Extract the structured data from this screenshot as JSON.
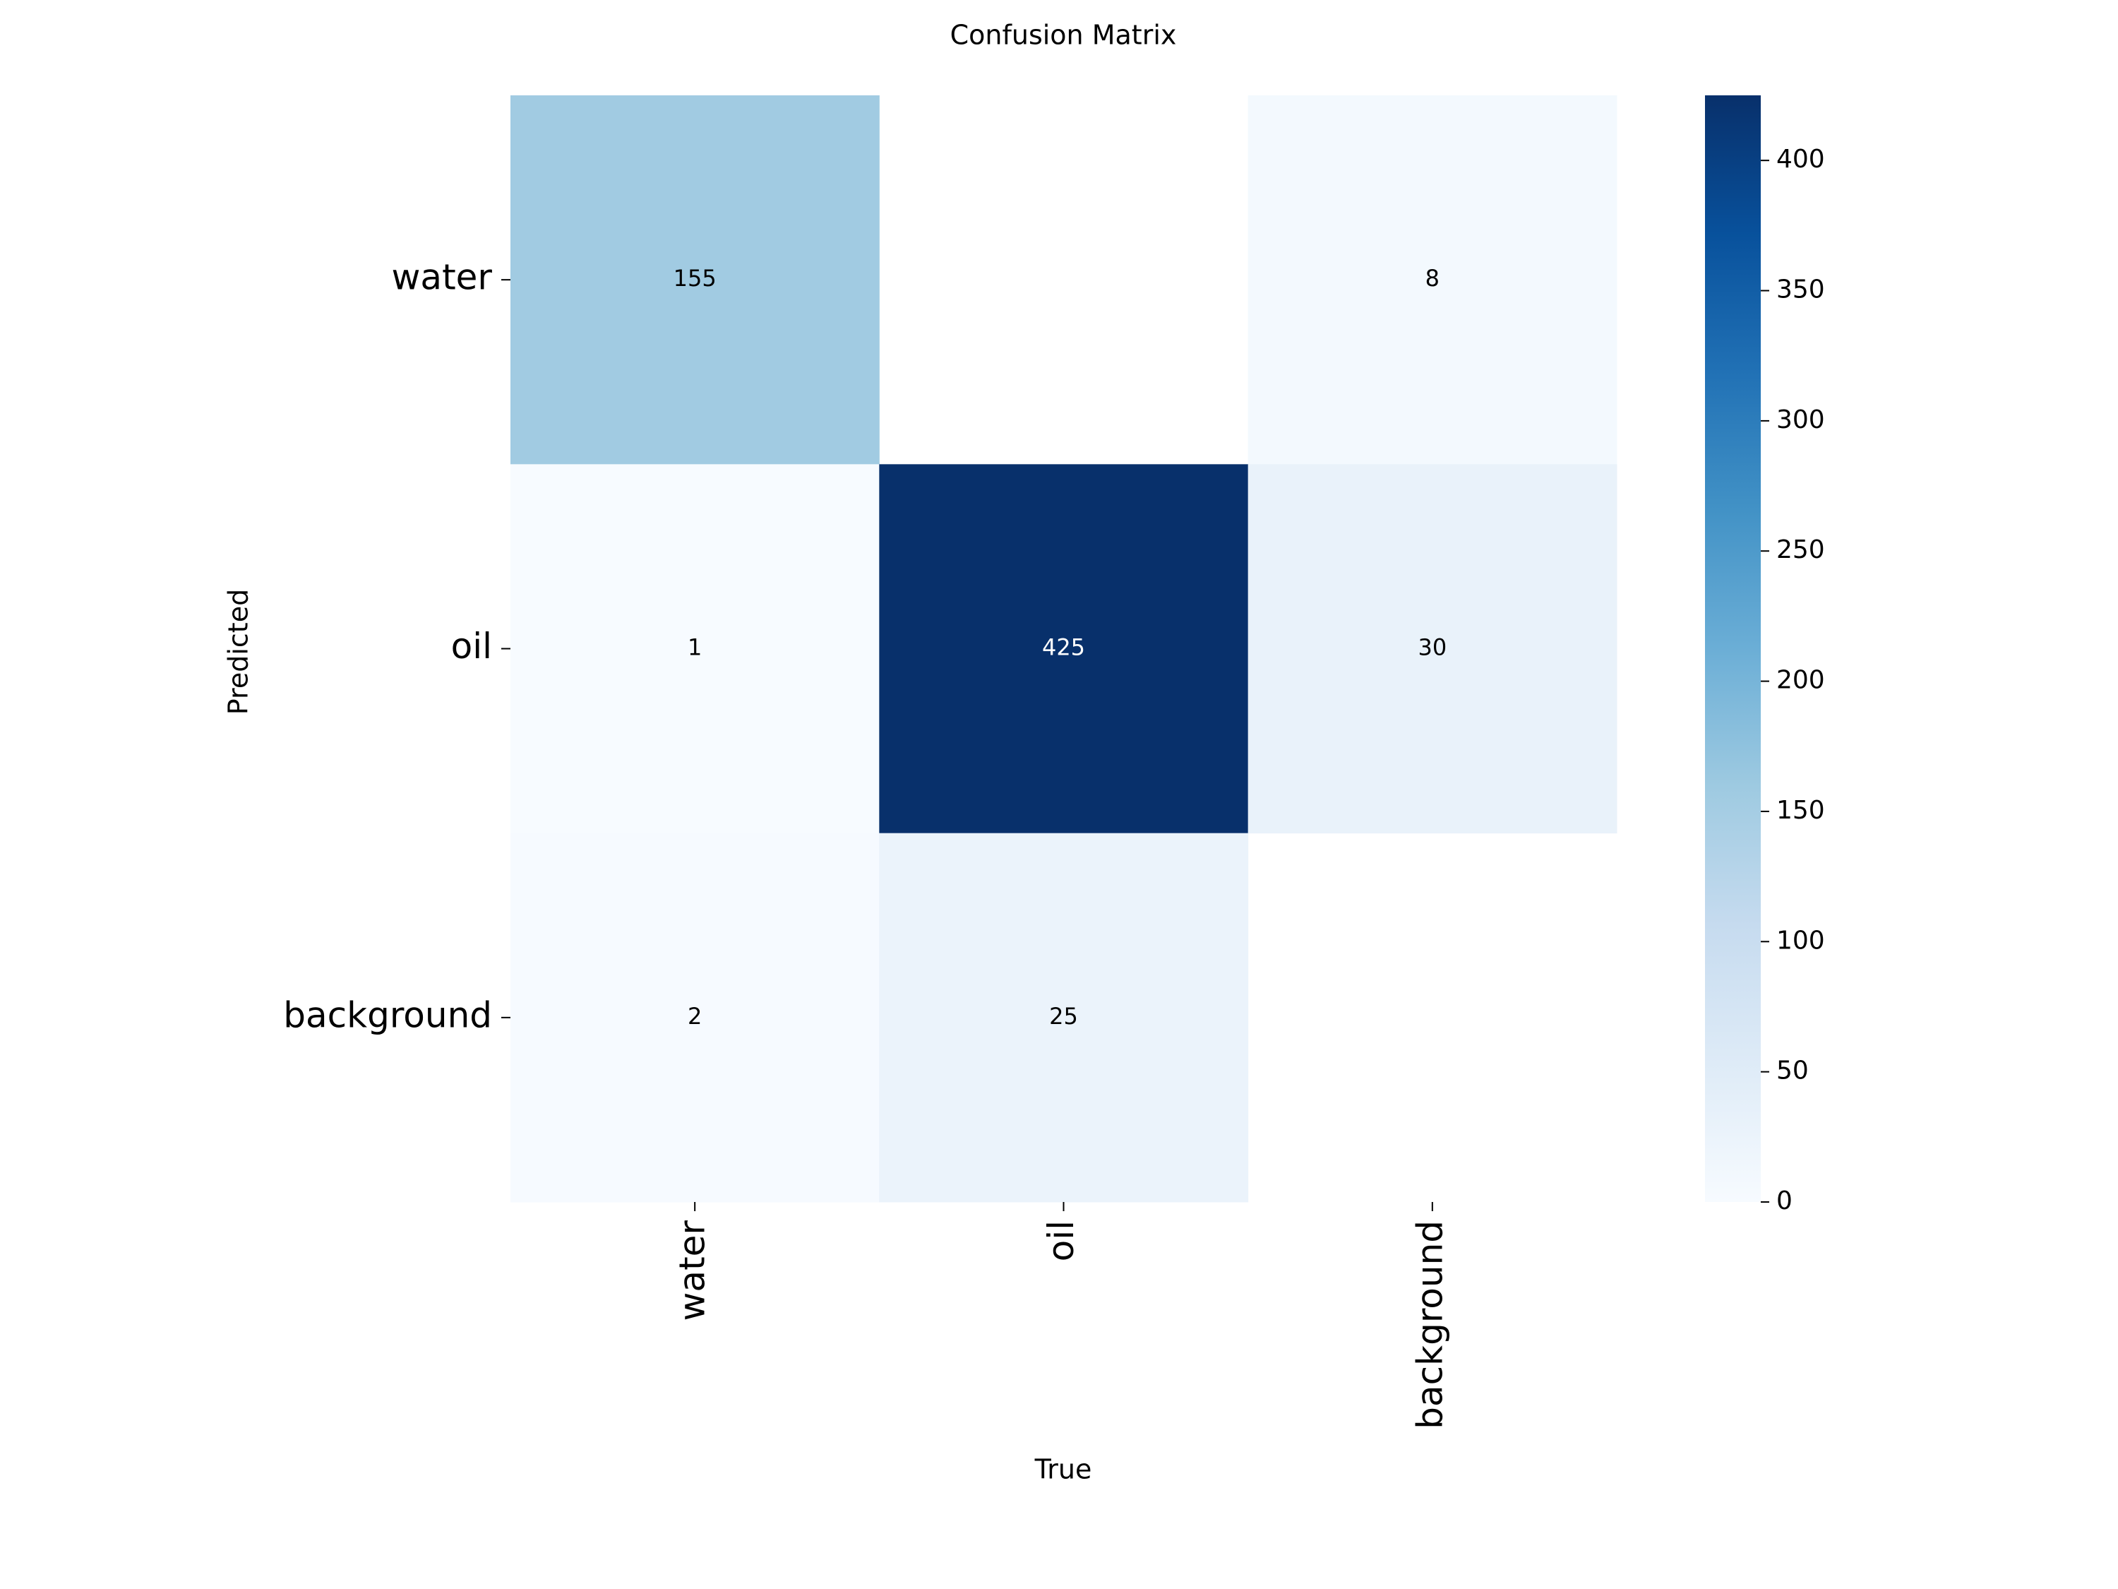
{
  "chart_data": {
    "type": "heatmap",
    "title": "Confusion Matrix",
    "x_label": "True",
    "y_label": "Predicted",
    "x_categories": [
      "water",
      "oil",
      "background"
    ],
    "y_categories": [
      "water",
      "oil",
      "background"
    ],
    "z": [
      [
        155,
        null,
        8
      ],
      [
        1,
        425,
        30
      ],
      [
        2,
        25,
        null
      ]
    ],
    "zlim": [
      0,
      425
    ],
    "zticks": [
      0,
      50,
      100,
      150,
      200,
      250,
      300,
      350,
      400
    ],
    "colorscale": [
      "#f7fbff",
      "#deebf7",
      "#c6dbef",
      "#9ecae1",
      "#6baed6",
      "#4292c6",
      "#2171b5",
      "#08519c",
      "#08306b"
    ]
  }
}
